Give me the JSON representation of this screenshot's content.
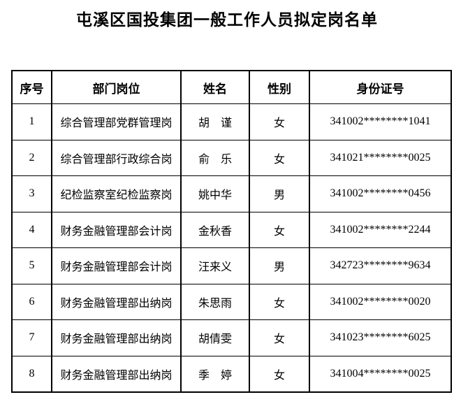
{
  "page": {
    "title": "屯溪区国投集团一般工作人员拟定岗名单"
  },
  "colors": {
    "text": "#000000",
    "border": "#000000",
    "background": "#ffffff"
  },
  "table": {
    "headers": [
      "序号",
      "部门岗位",
      "姓名",
      "性别",
      "身份证号"
    ],
    "rows": [
      {
        "no": "1",
        "position": "综合管理部党群管理岗",
        "name": "胡　谨",
        "gender": "女",
        "id_number": "341002********1041"
      },
      {
        "no": "2",
        "position": "综合管理部行政综合岗",
        "name": "俞　乐",
        "gender": "女",
        "id_number": "341021********0025"
      },
      {
        "no": "3",
        "position": "纪检监察室纪检监察岗",
        "name": "姚中华",
        "gender": "男",
        "id_number": "341002********0456"
      },
      {
        "no": "4",
        "position": "财务金融管理部会计岗",
        "name": "金秋香",
        "gender": "女",
        "id_number": "341002********2244"
      },
      {
        "no": "5",
        "position": "财务金融管理部会计岗",
        "name": "汪来义",
        "gender": "男",
        "id_number": "342723********9634"
      },
      {
        "no": "6",
        "position": "财务金融管理部出纳岗",
        "name": "朱思雨",
        "gender": "女",
        "id_number": "341002********0020"
      },
      {
        "no": "7",
        "position": "财务金融管理部出纳岗",
        "name": "胡倩雯",
        "gender": "女",
        "id_number": "341023********6025"
      },
      {
        "no": "8",
        "position": "财务金融管理部出纳岗",
        "name": "季　婷",
        "gender": "女",
        "id_number": "341004********0025"
      }
    ]
  }
}
